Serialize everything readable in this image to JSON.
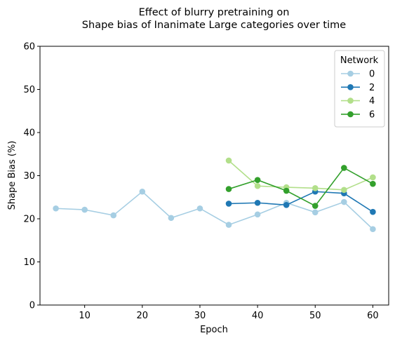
{
  "chart_data": {
    "type": "line",
    "title": "Effect of blurry pretraining on",
    "subtitle": "Shape bias of Inanimate Large categories over time",
    "xlabel": "Epoch",
    "ylabel": "Shape Bias (%)",
    "xlim": [
      2.25,
      62.75
    ],
    "ylim": [
      0,
      60
    ],
    "xticks": [
      10,
      20,
      30,
      40,
      50,
      60
    ],
    "yticks": [
      0,
      10,
      20,
      30,
      40,
      50,
      60
    ],
    "grid": false,
    "legend": {
      "title": "Network",
      "placement": "top-right"
    },
    "series": [
      {
        "name": "0",
        "color": "#a6cee3",
        "x": [
          5,
          10,
          15,
          20,
          25,
          30,
          35,
          40,
          45,
          50,
          55,
          60
        ],
        "values": [
          22.4,
          22.1,
          20.8,
          26.3,
          20.2,
          22.4,
          18.6,
          21.0,
          23.7,
          21.5,
          23.9,
          17.6
        ]
      },
      {
        "name": "2",
        "color": "#1f78b4",
        "x": [
          35,
          40,
          45,
          50,
          55,
          60
        ],
        "values": [
          23.5,
          23.7,
          23.2,
          26.3,
          25.9,
          21.6
        ]
      },
      {
        "name": "4",
        "color": "#b2df8a",
        "x": [
          35,
          40,
          45,
          50,
          55,
          60
        ],
        "values": [
          33.5,
          27.6,
          27.3,
          27.1,
          26.7,
          29.6
        ]
      },
      {
        "name": "6",
        "color": "#33a02c",
        "x": [
          35,
          40,
          45,
          50,
          55,
          60
        ],
        "values": [
          26.9,
          29.0,
          26.5,
          23.0,
          31.8,
          28.1
        ]
      }
    ]
  }
}
